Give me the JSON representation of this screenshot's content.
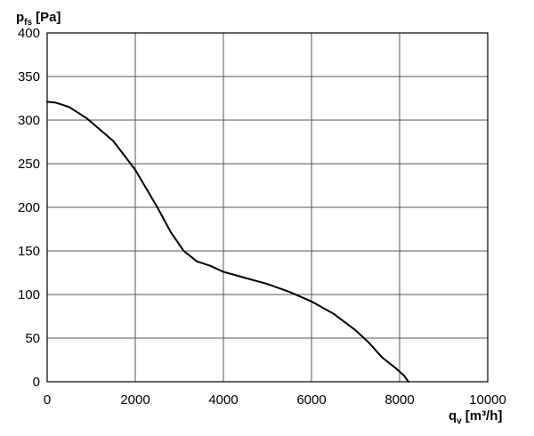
{
  "chart_data": {
    "type": "line",
    "title": "",
    "ylabel": {
      "main": "p",
      "sub": "fs",
      "unit": "[Pa]"
    },
    "xlabel": {
      "main": "q",
      "sub": "v",
      "unit": "[m³/h]"
    },
    "xlim": [
      0,
      10000
    ],
    "ylim": [
      0,
      400
    ],
    "xticks": [
      "0",
      "2000",
      "4000",
      "6000",
      "8000",
      "10000"
    ],
    "yticks": [
      "0",
      "50",
      "100",
      "150",
      "200",
      "250",
      "300",
      "350",
      "400"
    ],
    "grid": true,
    "series": [
      {
        "x": [
          0,
          200,
          500,
          900,
          1500,
          2000,
          2500,
          2800,
          3100,
          3400,
          3700,
          4000,
          4500,
          5000,
          5500,
          6000,
          6500,
          7000,
          7300,
          7600,
          7900,
          8100,
          8200
        ],
        "y": [
          321,
          320,
          315,
          302,
          276,
          243,
          200,
          172,
          150,
          138,
          133,
          126,
          119,
          112,
          103,
          92,
          78,
          59,
          45,
          28,
          16,
          7,
          0
        ]
      }
    ],
    "colors": {
      "line": "#000000",
      "grid": "#555555",
      "frame": "#000000"
    }
  }
}
